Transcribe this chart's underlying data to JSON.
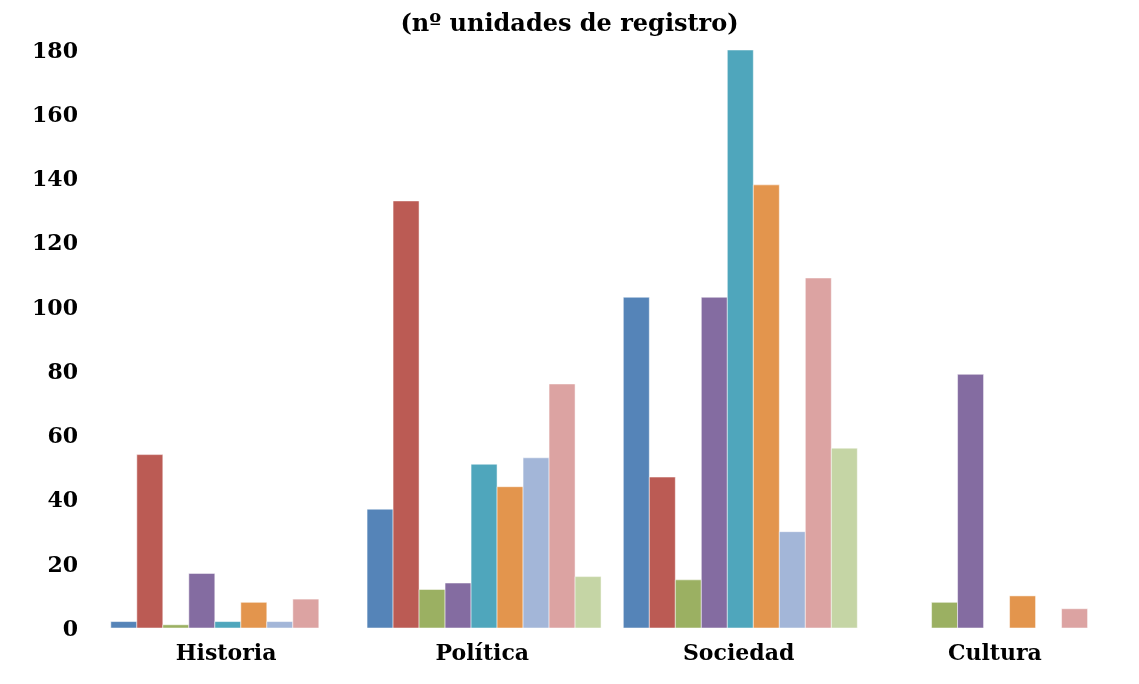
{
  "chart_data": {
    "type": "bar",
    "title": "(nº unidades de registro)",
    "categories": [
      "Historia",
      "Política",
      "Sociedad",
      "Cultura"
    ],
    "series": [
      {
        "color": "#5584b8",
        "values": [
          2,
          37,
          103,
          null
        ]
      },
      {
        "color": "#bb5b54",
        "values": [
          54,
          133,
          47,
          null
        ]
      },
      {
        "color": "#9bb062",
        "values": [
          1,
          12,
          15,
          8
        ]
      },
      {
        "color": "#846ca1",
        "values": [
          17,
          14,
          103,
          79
        ]
      },
      {
        "color": "#4fa6bc",
        "values": [
          2,
          51,
          180,
          null
        ]
      },
      {
        "color": "#e3954d",
        "values": [
          8,
          44,
          138,
          10
        ]
      },
      {
        "color": "#a3b6d8",
        "values": [
          2,
          53,
          30,
          null
        ]
      },
      {
        "color": "#dca3a2",
        "values": [
          9,
          76,
          109,
          6
        ]
      },
      {
        "color": "#c5d5a5",
        "values": [
          null,
          16,
          56,
          null
        ]
      }
    ],
    "ylim": [
      0,
      180
    ],
    "yticks": [
      0,
      20,
      40,
      60,
      80,
      100,
      120,
      140,
      160,
      180
    ],
    "grid": false,
    "legend": false
  }
}
